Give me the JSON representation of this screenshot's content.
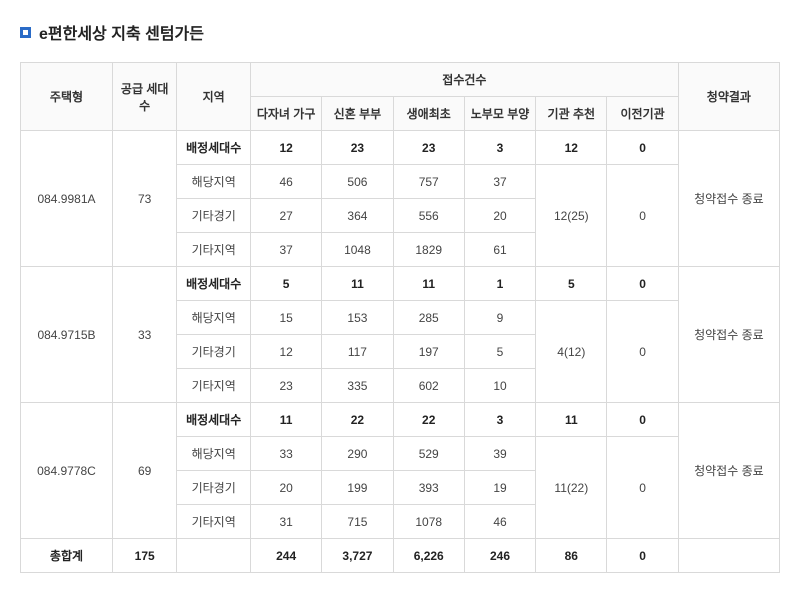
{
  "title": "e편한세상 지축 센텀가든",
  "header": {
    "houseType": "주택형",
    "supply": "공급 세대수",
    "region": "지역",
    "appCountGroup": "접수건수",
    "appCols": [
      "다자녀 가구",
      "신혼 부부",
      "생애최초",
      "노부모 부양",
      "기관 추천",
      "이전기관"
    ],
    "result": "청약결과"
  },
  "regionLabels": {
    "assigned": "배정세대수",
    "local": "해당지역",
    "otherGyeonggi": "기타경기",
    "otherRegion": "기타지역"
  },
  "groups": [
    {
      "type": "084.9981A",
      "supply": "73",
      "result": "청약접수 종료",
      "assigned": {
        "multi": "12",
        "newly": "23",
        "first": "23",
        "elder": "3",
        "agency": "12",
        "prev": "0"
      },
      "local": {
        "multi": "46",
        "newly": "506",
        "first": "757",
        "elder": "37"
      },
      "otherGyeonggi": {
        "multi": "27",
        "newly": "364",
        "first": "556",
        "elder": "20"
      },
      "otherRegion": {
        "multi": "37",
        "newly": "1048",
        "first": "1829",
        "elder": "61"
      },
      "agencyMerged": "12(25)",
      "prevMerged": "0"
    },
    {
      "type": "084.9715B",
      "supply": "33",
      "result": "청약접수 종료",
      "assigned": {
        "multi": "5",
        "newly": "11",
        "first": "11",
        "elder": "1",
        "agency": "5",
        "prev": "0"
      },
      "local": {
        "multi": "15",
        "newly": "153",
        "first": "285",
        "elder": "9"
      },
      "otherGyeonggi": {
        "multi": "12",
        "newly": "117",
        "first": "197",
        "elder": "5"
      },
      "otherRegion": {
        "multi": "23",
        "newly": "335",
        "first": "602",
        "elder": "10"
      },
      "agencyMerged": "4(12)",
      "prevMerged": "0"
    },
    {
      "type": "084.9778C",
      "supply": "69",
      "result": "청약접수 종료",
      "assigned": {
        "multi": "11",
        "newly": "22",
        "first": "22",
        "elder": "3",
        "agency": "11",
        "prev": "0"
      },
      "local": {
        "multi": "33",
        "newly": "290",
        "first": "529",
        "elder": "39"
      },
      "otherGyeonggi": {
        "multi": "20",
        "newly": "199",
        "first": "393",
        "elder": "19"
      },
      "otherRegion": {
        "multi": "31",
        "newly": "715",
        "first": "1078",
        "elder": "46"
      },
      "agencyMerged": "11(22)",
      "prevMerged": "0"
    }
  ],
  "total": {
    "label": "총합계",
    "supply": "175",
    "region": "",
    "multi": "244",
    "newly": "3,727",
    "first": "6,226",
    "elder": "246",
    "agency": "86",
    "prev": "0",
    "result": ""
  },
  "colors": {
    "bulletBorder": "#2a6bc7",
    "border": "#d9d9d9",
    "headerBg": "#fafafa"
  }
}
